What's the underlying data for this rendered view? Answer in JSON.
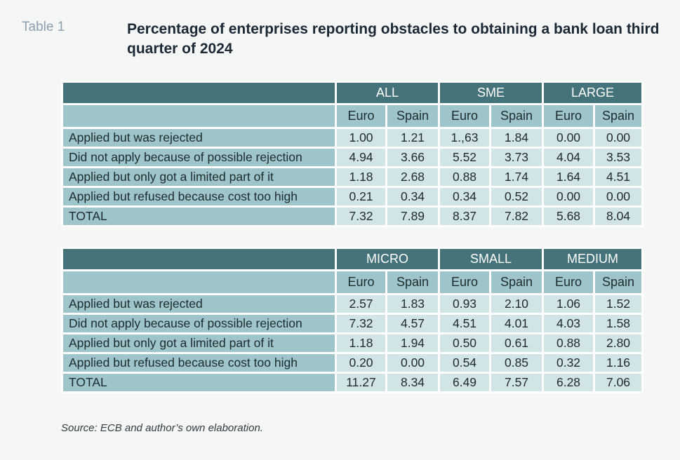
{
  "table_label": "Table 1",
  "title": "Percentage of enterprises reporting obstacles to obtaining a bank loan third quarter of 2024",
  "tables": [
    {
      "groups": [
        "ALL",
        "SME",
        "LARGE"
      ],
      "subheaders": [
        "Euro",
        "Spain",
        "Euro",
        "Spain",
        "Euro",
        "Spain"
      ],
      "rows": [
        {
          "label": "Applied but was rejected",
          "values": [
            "1.00",
            "1.21",
            "1.,63",
            "1.84",
            "0.00",
            "0.00"
          ]
        },
        {
          "label": "Did not apply because of possible rejection",
          "values": [
            "4.94",
            "3.66",
            "5.52",
            "3.73",
            "4.04",
            "3.53"
          ]
        },
        {
          "label": "Applied but only got a limited part of it",
          "values": [
            "1.18",
            "2.68",
            "0.88",
            "1.74",
            "1.64",
            "4.51"
          ]
        },
        {
          "label": "Applied but refused because cost too high",
          "values": [
            "0.21",
            "0.34",
            "0.34",
            "0.52",
            "0.00",
            "0.00"
          ]
        },
        {
          "label": "TOTAL",
          "values": [
            "7.32",
            "7.89",
            "8.37",
            "7.82",
            "5.68",
            "8.04"
          ]
        }
      ]
    },
    {
      "groups": [
        "MICRO",
        "SMALL",
        "MEDIUM"
      ],
      "subheaders": [
        "Euro",
        "Spain",
        "Euro",
        "Spain",
        "Euro",
        "Spain"
      ],
      "rows": [
        {
          "label": "Applied but was rejected",
          "values": [
            "2.57",
            "1.83",
            "0.93",
            "2.10",
            "1.06",
            "1.52"
          ]
        },
        {
          "label": "Did not apply because of possible rejection",
          "values": [
            "7.32",
            "4.57",
            "4.51",
            "4.01",
            "4.03",
            "1.58"
          ]
        },
        {
          "label": "Applied but only got a limited part of it",
          "values": [
            "1.18",
            "1.94",
            "0.50",
            "0.61",
            "0.88",
            "2.80"
          ]
        },
        {
          "label": "Applied but refused because cost too high",
          "values": [
            "0.20",
            "0.00",
            "0.54",
            "0.85",
            "0.32",
            "1.16"
          ]
        },
        {
          "label": "TOTAL",
          "values": [
            "11.27",
            "8.34",
            "6.49",
            "7.57",
            "6.28",
            "7.06"
          ]
        }
      ]
    }
  ],
  "source": "Source: ECB and author’s own elaboration."
}
